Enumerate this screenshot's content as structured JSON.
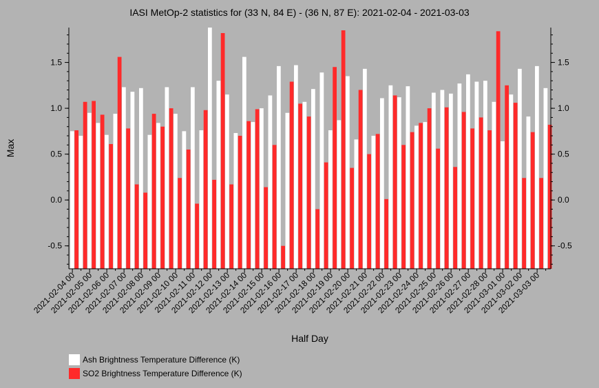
{
  "chart_data": {
    "type": "bar",
    "title": "IASI MetOp-2 statistics for (33 N, 84 E) - (36 N, 87 E): 2021-02-04 - 2021-03-03",
    "xlabel": "Half Day",
    "ylabel": "Max",
    "ylim": [
      -0.75,
      1.88
    ],
    "yticks": [
      -0.5,
      0.0,
      0.5,
      1.0,
      1.5
    ],
    "ytick_labels": [
      "-0.5",
      "0.0",
      "0.5",
      "1.0",
      "1.5"
    ],
    "xtick_labels": [
      "2021-02-04 00",
      "2021-02-05 00",
      "2021-02-06 00",
      "2021-02-07 00",
      "2021-02-08 00",
      "2021-02-09 00",
      "2021-02-10 00",
      "2021-02-11 00",
      "2021-02-12 00",
      "2021-02-13 00",
      "2021-02-14 00",
      "2021-02-15 00",
      "2021-02-16 00",
      "2021-02-17 00",
      "2021-02-18 00",
      "2021-02-19 00",
      "2021-02-20 00",
      "2021-02-21 00",
      "2021-02-22 00",
      "2021-02-23 00",
      "2021-02-24 00",
      "2021-02-25 00",
      "2021-02-26 00",
      "2021-02-27 00",
      "2021-02-28 00",
      "2021-03-01 00",
      "2021-03-02 00",
      "2021-03-03 00"
    ],
    "legend_placement": "bottom-left",
    "series": [
      {
        "name": "Ash Brightness Temperature Difference (K)",
        "color": "#ffffff",
        "values": [
          0.75,
          0.7,
          0.95,
          0.84,
          0.71,
          0.94,
          1.23,
          1.18,
          1.22,
          0.71,
          0.84,
          1.23,
          0.94,
          0.75,
          1.23,
          0.76,
          1.88,
          1.3,
          1.15,
          0.73,
          1.56,
          0.85,
          1.0,
          1.14,
          1.46,
          0.95,
          1.47,
          1.07,
          1.21,
          1.39,
          0.76,
          0.87,
          1.35,
          0.66,
          1.43,
          0.7,
          1.11,
          1.25,
          1.12,
          1.24,
          0.81,
          0.85,
          1.17,
          1.2,
          1.16,
          1.27,
          1.37,
          1.29,
          1.3,
          1.07,
          0.64,
          1.15,
          1.43,
          0.91,
          1.46,
          1.22
        ]
      },
      {
        "name": "SO2 Brightness Temperature Difference (K)",
        "color": "#ff2a2a",
        "values": [
          0.76,
          1.07,
          1.08,
          0.93,
          0.61,
          1.56,
          0.78,
          0.17,
          0.08,
          0.94,
          0.8,
          1.0,
          0.24,
          0.55,
          -0.04,
          0.98,
          0.22,
          1.82,
          0.17,
          0.7,
          0.86,
          0.99,
          0.14,
          0.6,
          -0.5,
          1.29,
          1.05,
          0.91,
          -0.1,
          0.41,
          1.45,
          1.85,
          0.35,
          1.2,
          0.5,
          0.72,
          0.01,
          1.14,
          0.6,
          0.74,
          0.84,
          1.0,
          0.56,
          1.01,
          0.36,
          0.96,
          0.78,
          0.9,
          0.76,
          1.84,
          1.25,
          1.06,
          0.24,
          0.74,
          0.24,
          0.82
        ]
      }
    ]
  }
}
